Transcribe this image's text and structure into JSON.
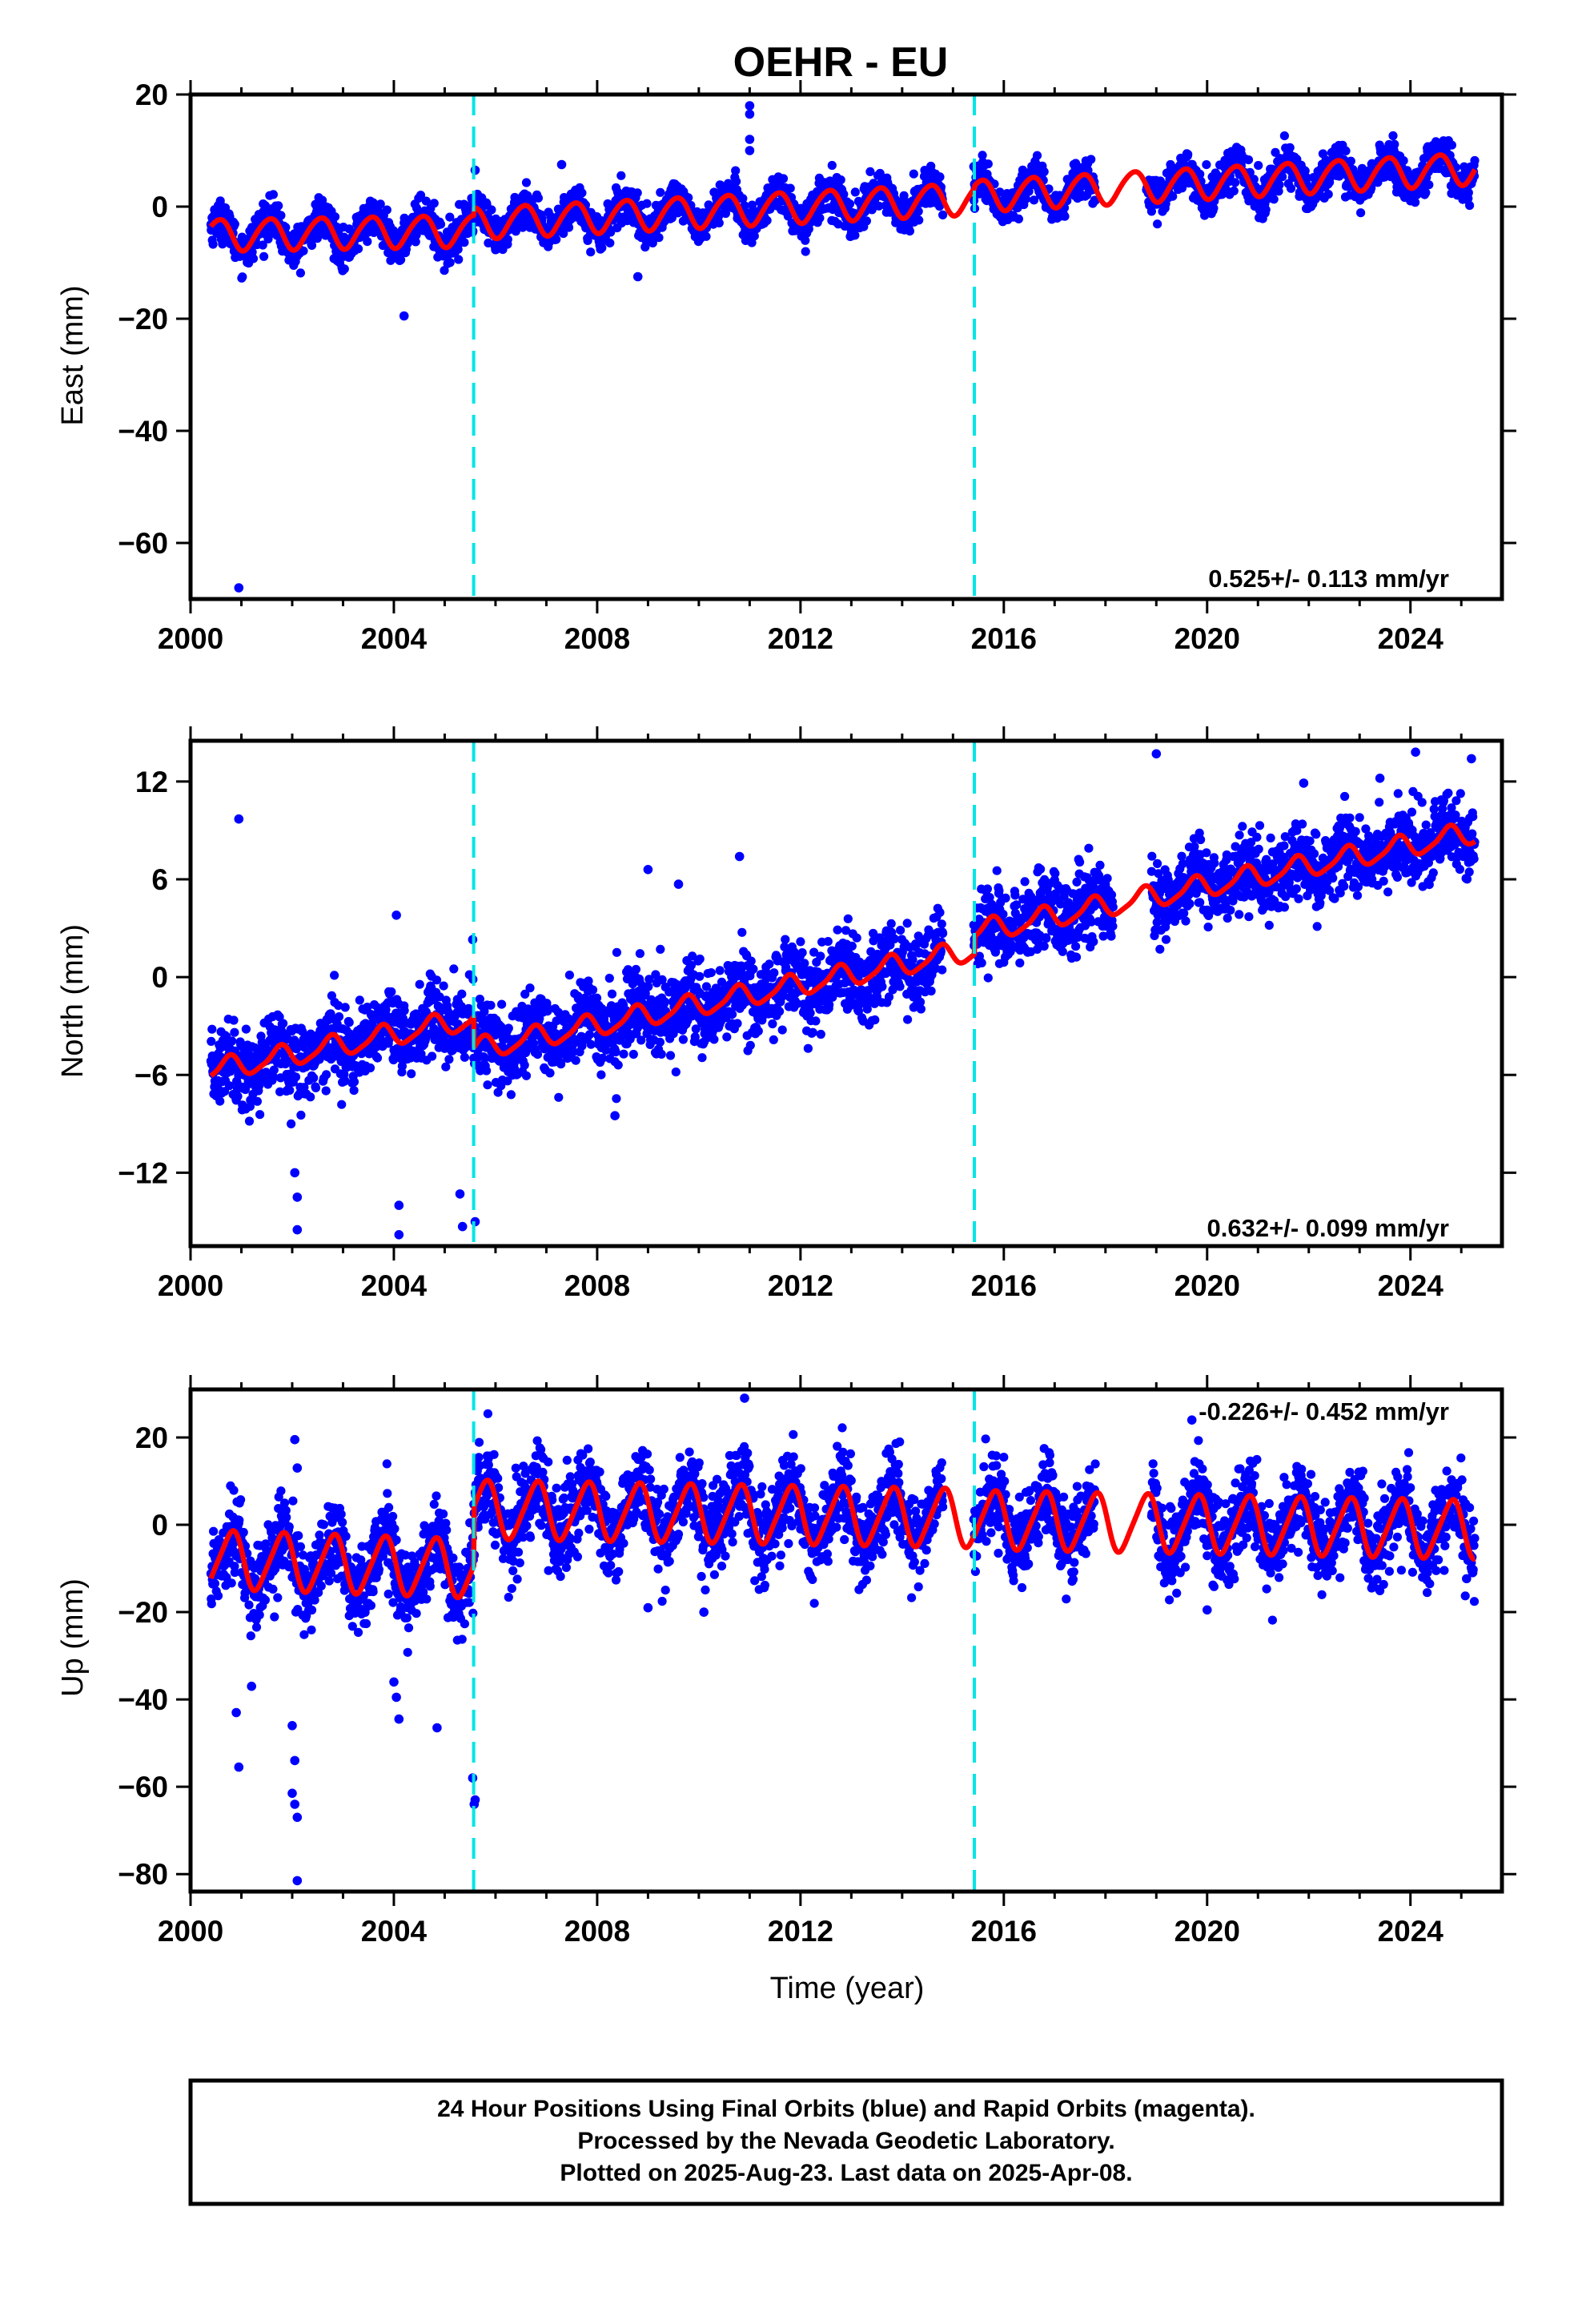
{
  "title": "OEHR - EU",
  "xlabel": "Time (year)",
  "colors": {
    "final_orbits": "#0000ff",
    "model_fit": "#ff0000",
    "offsets": "#00e5e5",
    "frame": "#000000"
  },
  "footer": {
    "line1": "24 Hour Positions Using Final Orbits (blue) and Rapid Orbits (magenta).",
    "line2": "Processed by the Nevada Geodetic Laboratory.",
    "line3": "Plotted on 2025-Aug-23. Last data on 2025-Apr-08."
  },
  "chart_data": [
    {
      "type": "scatter",
      "component": "east",
      "ylabel": "East (mm)",
      "xlim": [
        2000.0,
        2025.8
      ],
      "ylim": [
        -70,
        20
      ],
      "xticks": [
        2000,
        2004,
        2008,
        2012,
        2016,
        2020,
        2024
      ],
      "yticks": [
        20,
        0,
        -20,
        -40,
        -60
      ],
      "velocity_label": "0.525+/- 0.113 mm/yr",
      "data_range": [
        2000.4,
        2025.27
      ],
      "gaps": [
        [
          2014.8,
          2015.4
        ],
        [
          2017.8,
          2018.8
        ]
      ],
      "offsets": [
        2005.57,
        2015.42
      ],
      "model": {
        "anchor_year": 2000.5,
        "segments": [
          {
            "start": 2000.4,
            "end": 2005.57,
            "intercept": -5.0,
            "slope": 0.15
          },
          {
            "start": 2005.57,
            "end": 2015.42,
            "intercept": -5.2,
            "slope": 0.45
          },
          {
            "start": 2015.42,
            "end": 2025.3,
            "intercept": -5.5,
            "slope": 0.5
          }
        ],
        "annual_amplitude": 2.8,
        "annual_phase_year": 0.3,
        "semiannual_amplitude": 0.3,
        "semiannual_phase_year": 0.1
      },
      "scatter_sd": 1.7,
      "outliers": [
        {
          "x": 2000.95,
          "y": -68
        },
        {
          "x": 2004.2,
          "y": -19.5
        },
        {
          "x": 2008.8,
          "y": -12.5
        },
        {
          "x": 2011.0,
          "y": 18
        },
        {
          "x": 2011.0,
          "y": 16.5
        },
        {
          "x": 2011.0,
          "y": 12
        },
        {
          "x": 2011.0,
          "y": 10
        },
        {
          "x": 2007.3,
          "y": 7.5
        },
        {
          "x": 2005.6,
          "y": 6.5
        }
      ]
    },
    {
      "type": "scatter",
      "component": "north",
      "ylabel": "North (mm)",
      "xlim": [
        2000.0,
        2025.8
      ],
      "ylim": [
        -16.5,
        14.5
      ],
      "xticks": [
        2000,
        2004,
        2008,
        2012,
        2016,
        2020,
        2024
      ],
      "yticks": [
        12,
        6,
        0,
        -6,
        -12
      ],
      "velocity_label": "0.632+/- 0.099 mm/yr",
      "data_range": [
        2000.4,
        2025.27
      ],
      "gaps": [
        [
          2014.8,
          2015.4
        ],
        [
          2018.15,
          2018.9
        ]
      ],
      "offsets": [
        2005.57,
        2015.42
      ],
      "model": {
        "anchor_year": 2000.5,
        "segments": [
          {
            "start": 2000.4,
            "end": 2005.57,
            "intercept": -5.7,
            "slope": 0.62
          },
          {
            "start": 2005.57,
            "end": 2015.42,
            "intercept": -7.6,
            "slope": 0.62
          },
          {
            "start": 2015.42,
            "end": 2025.3,
            "intercept": -6.5,
            "slope": 0.62
          }
        ],
        "annual_amplitude": 0.65,
        "annual_phase_year": 0.5,
        "semiannual_amplitude": 0.15,
        "semiannual_phase_year": 0.2
      },
      "scatter_sd": 1.2,
      "outliers": [
        {
          "x": 2000.95,
          "y": 9.7
        },
        {
          "x": 2002.05,
          "y": -12
        },
        {
          "x": 2002.1,
          "y": -13.5
        },
        {
          "x": 2002.1,
          "y": -15.5
        },
        {
          "x": 2004.1,
          "y": -14
        },
        {
          "x": 2004.1,
          "y": -15.8
        },
        {
          "x": 2004.05,
          "y": 3.8
        },
        {
          "x": 2005.3,
          "y": -13.3
        },
        {
          "x": 2005.35,
          "y": -15.3
        },
        {
          "x": 2005.6,
          "y": -15
        },
        {
          "x": 2005.55,
          "y": 2.3
        },
        {
          "x": 2008.35,
          "y": -8.5
        },
        {
          "x": 2009.0,
          "y": 6.6
        },
        {
          "x": 2009.6,
          "y": 5.7
        },
        {
          "x": 2010.8,
          "y": 7.4
        },
        {
          "x": 2019.0,
          "y": 13.7
        },
        {
          "x": 2024.1,
          "y": 13.8
        },
        {
          "x": 2025.2,
          "y": 13.4
        },
        {
          "x": 2023.4,
          "y": 12.2
        },
        {
          "x": 2021.9,
          "y": 11.9
        }
      ]
    },
    {
      "type": "scatter",
      "component": "up",
      "ylabel": "Up (mm)",
      "xlim": [
        2000.0,
        2025.8
      ],
      "ylim": [
        -84,
        31
      ],
      "xticks": [
        2000,
        2004,
        2008,
        2012,
        2016,
        2020,
        2024
      ],
      "yticks": [
        20,
        0,
        -20,
        -40,
        -60,
        -80
      ],
      "velocity_label": "-0.226+/- 0.452 mm/yr",
      "data_range": [
        2000.4,
        2025.27
      ],
      "gaps": [
        [
          2014.8,
          2015.4
        ],
        [
          2017.8,
          2018.9
        ]
      ],
      "offsets": [
        2005.57,
        2015.42
      ],
      "model": {
        "anchor_year": 2000.5,
        "segments": [
          {
            "start": 2000.4,
            "end": 2005.57,
            "intercept": -8.0,
            "slope": -0.4
          },
          {
            "start": 2005.57,
            "end": 2015.42,
            "intercept": 4.5,
            "slope": -0.2
          },
          {
            "start": 2015.42,
            "end": 2025.3,
            "intercept": 4.5,
            "slope": -0.226
          }
        ],
        "annual_amplitude": 6.5,
        "annual_phase_year": 0.55,
        "semiannual_amplitude": 1.0,
        "semiannual_phase_year": 0.3
      },
      "scatter_sd": 4.8,
      "outliers": [
        {
          "x": 2000.9,
          "y": -43
        },
        {
          "x": 2000.95,
          "y": -55.5
        },
        {
          "x": 2001.2,
          "y": -37
        },
        {
          "x": 2002.0,
          "y": -61.5
        },
        {
          "x": 2002.05,
          "y": -64
        },
        {
          "x": 2002.1,
          "y": -67
        },
        {
          "x": 2002.1,
          "y": -81.5
        },
        {
          "x": 2002.05,
          "y": -54
        },
        {
          "x": 2002.0,
          "y": -46
        },
        {
          "x": 2002.05,
          "y": 19.5
        },
        {
          "x": 2002.1,
          "y": 13
        },
        {
          "x": 2004.1,
          "y": -44.5
        },
        {
          "x": 2004.05,
          "y": -39.5
        },
        {
          "x": 2004.0,
          "y": -36
        },
        {
          "x": 2004.85,
          "y": -46.5
        },
        {
          "x": 2005.55,
          "y": -58
        },
        {
          "x": 2005.6,
          "y": -63
        },
        {
          "x": 2005.58,
          "y": -64
        },
        {
          "x": 2010.9,
          "y": 29
        },
        {
          "x": 2010.1,
          "y": -20
        },
        {
          "x": 2009.0,
          "y": -19
        },
        {
          "x": 2020.0,
          "y": -19.5
        },
        {
          "x": 2019.7,
          "y": 24
        }
      ]
    }
  ]
}
